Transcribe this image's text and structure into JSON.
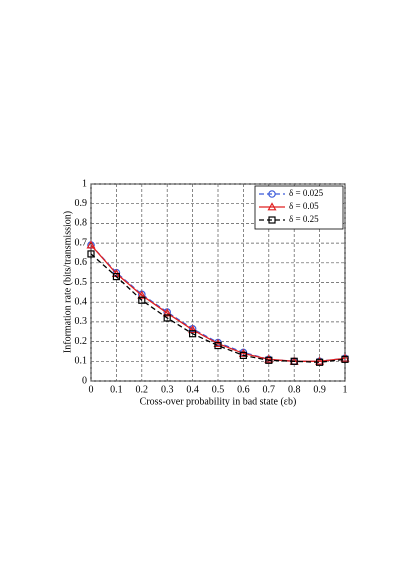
{
  "chart_data": {
    "type": "line",
    "x_label": "Cross-over probability in bad state (εb)",
    "y_label": "Information rate (bits/transmission)",
    "x": [
      0,
      0.1,
      0.2,
      0.3,
      0.4,
      0.5,
      0.6,
      0.7,
      0.8,
      0.9,
      1
    ],
    "series": [
      {
        "name": "δ = 0.025",
        "color": "#3b5bd9",
        "dash": true,
        "marker": "circle",
        "values": [
          0.69,
          0.55,
          0.44,
          0.35,
          0.265,
          0.195,
          0.145,
          0.11,
          0.1,
          0.1,
          0.115
        ]
      },
      {
        "name": "δ = 0.05",
        "color": "#e02020",
        "dash": false,
        "marker": "triangle",
        "values": [
          0.69,
          0.545,
          0.435,
          0.345,
          0.26,
          0.19,
          0.14,
          0.11,
          0.1,
          0.1,
          0.115
        ]
      },
      {
        "name": "δ = 0.25",
        "color": "#000000",
        "dash": true,
        "marker": "square",
        "values": [
          0.645,
          0.53,
          0.41,
          0.32,
          0.24,
          0.18,
          0.13,
          0.105,
          0.1,
          0.095,
          0.11
        ]
      }
    ],
    "xlim": [
      0,
      1
    ],
    "ylim": [
      0,
      1
    ],
    "xticks": [
      0,
      0.1,
      0.2,
      0.3,
      0.4,
      0.5,
      0.6,
      0.7,
      0.8,
      0.9,
      1
    ],
    "yticks": [
      0,
      0.1,
      0.2,
      0.3,
      0.4,
      0.5,
      0.6,
      0.7,
      0.8,
      0.9,
      1
    ],
    "grid": true,
    "legend": "upper right"
  }
}
